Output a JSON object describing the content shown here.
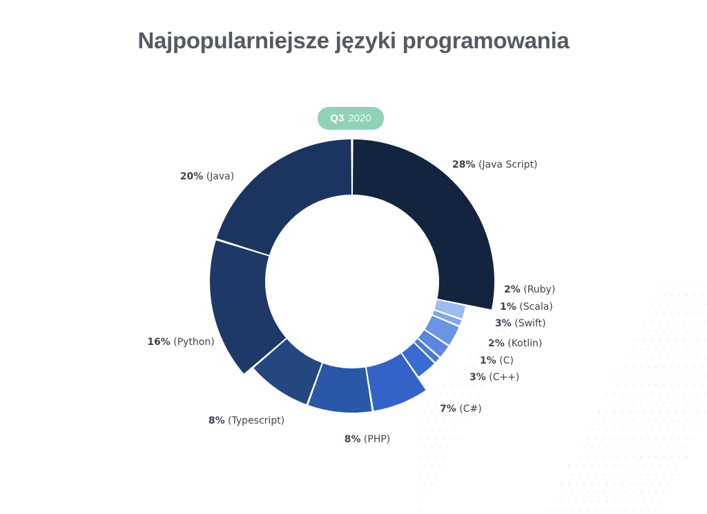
{
  "title": "Najpopularniejsze języki programowania",
  "badge": {
    "quarter": "Q3",
    "year": "2020"
  },
  "chart_data": {
    "type": "pie",
    "title": "Najpopularniejsze języki programowania",
    "subtitle": "Q3 2020",
    "unit": "%",
    "categories": [
      "Java Script",
      "Ruby",
      "Scala",
      "Swift",
      "Kotlin",
      "C",
      "C++",
      "C#",
      "PHP",
      "Typescript",
      "Python",
      "Java"
    ],
    "values": [
      28,
      2,
      1,
      3,
      2,
      1,
      3,
      7,
      8,
      8,
      16,
      20
    ],
    "labels": [
      "28% (Java Script)",
      "2% (Ruby)",
      "1% (Scala)",
      "3% (Swift)",
      "2% (Kotlin)",
      "1% (C)",
      "3% (C++)",
      "7% (C#)",
      "8% (PHP)",
      "8% (Typescript)",
      "16% (Python)",
      "20% (Java)"
    ],
    "colors": [
      "#13243f",
      "#9dbbee",
      "#7fa6e6",
      "#6b95e3",
      "#5a86df",
      "#4a78db",
      "#3a6cd6",
      "#3363c7",
      "#2a57a6",
      "#25477f",
      "#1e3967",
      "#1c3560"
    ]
  }
}
